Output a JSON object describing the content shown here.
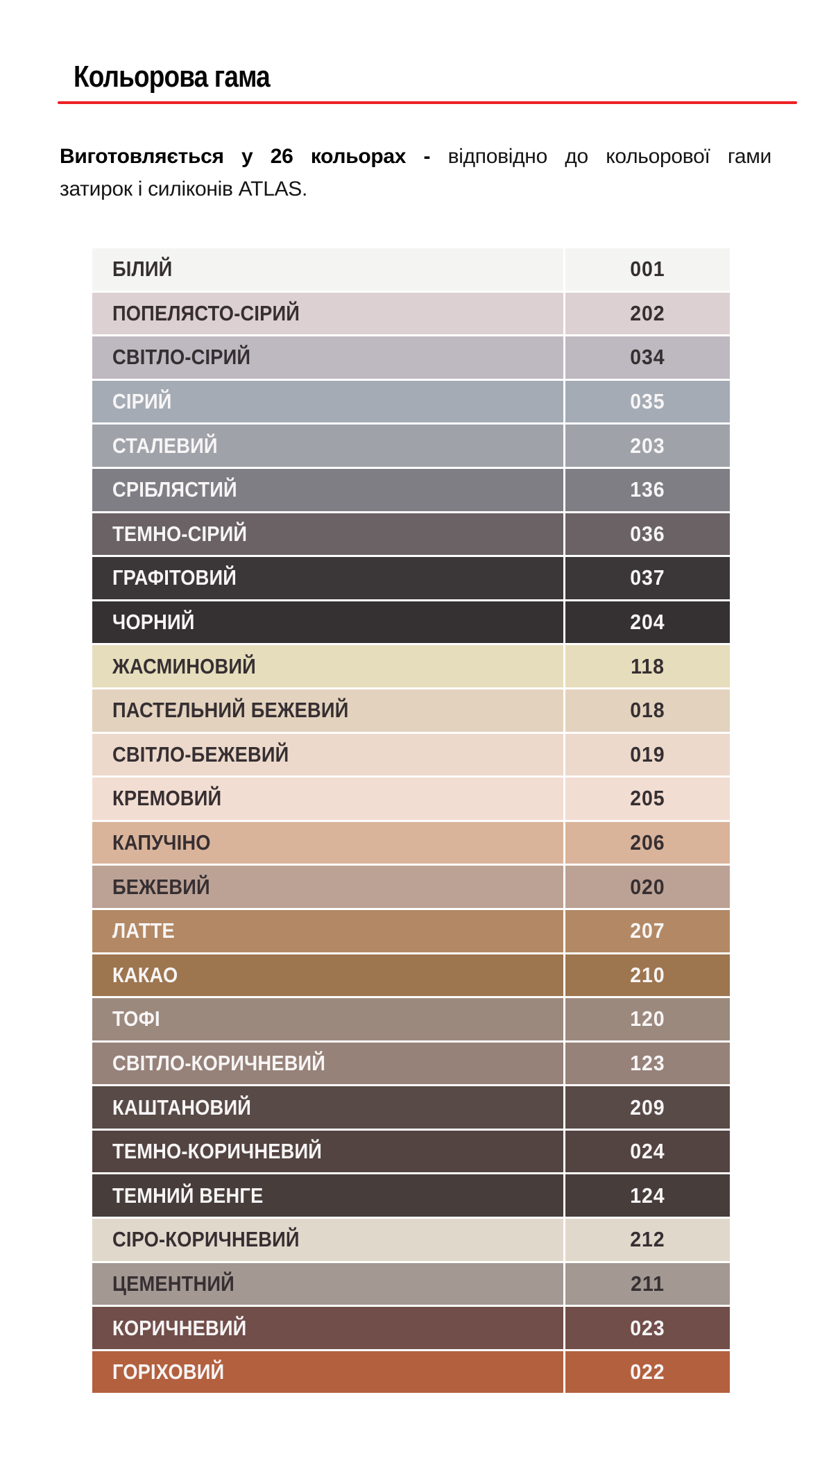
{
  "header": {
    "title": "Кольорова гама",
    "accent_line_color": "#ee2123"
  },
  "intro": {
    "line1_bold": "Виготовляється у 26  кольорах -",
    "line1_regular": "відповідно до кольорової гами",
    "line2": "затирок і силіконів ATLAS."
  },
  "palette": {
    "count": 26,
    "dark_text_color": "#362f32",
    "light_text_color": "#f7f5f6",
    "rows": [
      {
        "name": "БІЛИЙ",
        "code": "001",
        "bg": "#f4f5f2",
        "fg": "dark"
      },
      {
        "name": "ПОПЕЛЯСТО-СІРИЙ",
        "code": "202",
        "bg": "#ddd0d2",
        "fg": "dark"
      },
      {
        "name": "СВІТЛО-СІРИЙ",
        "code": "034",
        "bg": "#beb8c0",
        "fg": "dark"
      },
      {
        "name": "СІРИЙ",
        "code": "035",
        "bg": "#a4abb4",
        "fg": "light"
      },
      {
        "name": "СТАЛЕВИЙ",
        "code": "203",
        "bg": "#a0a2a9",
        "fg": "light"
      },
      {
        "name": "СРІБЛЯСТИЙ",
        "code": "136",
        "bg": "#7f7e84",
        "fg": "light"
      },
      {
        "name": "ТЕМНО-СІРИЙ",
        "code": "036",
        "bg": "#6a6265",
        "fg": "light"
      },
      {
        "name": "ГРАФІТОВИЙ",
        "code": "037",
        "bg": "#3b3738",
        "fg": "light"
      },
      {
        "name": "ЧОРНИЙ",
        "code": "204",
        "bg": "#353132",
        "fg": "light"
      },
      {
        "name": "ЖАСМИНОВИЙ",
        "code": "118",
        "bg": "#e6ddbc",
        "fg": "dark"
      },
      {
        "name": "ПАСТЕЛЬНИЙ БЕЖЕВИЙ",
        "code": "018",
        "bg": "#e3d2be",
        "fg": "dark"
      },
      {
        "name": "СВІТЛО-БЕЖЕВИЙ",
        "code": "019",
        "bg": "#ecd9cb",
        "fg": "dark"
      },
      {
        "name": "КРЕМОВИЙ",
        "code": "205",
        "bg": "#f2ddd2",
        "fg": "dark"
      },
      {
        "name": "КАПУЧІНО",
        "code": "206",
        "bg": "#d9b49b",
        "fg": "dark"
      },
      {
        "name": "БЕЖЕВИЙ",
        "code": "020",
        "bg": "#bca295",
        "fg": "dark"
      },
      {
        "name": "ЛАТТЕ",
        "code": "207",
        "bg": "#b38965",
        "fg": "light"
      },
      {
        "name": "КАКАО",
        "code": "210",
        "bg": "#9d754f",
        "fg": "light"
      },
      {
        "name": "ТОФІ",
        "code": "120",
        "bg": "#9c897e",
        "fg": "light"
      },
      {
        "name": "СВІТЛО-КОРИЧНЕВИЙ",
        "code": "123",
        "bg": "#968279",
        "fg": "light"
      },
      {
        "name": "КАШТАНОВИЙ",
        "code": "209",
        "bg": "#584a46",
        "fg": "light"
      },
      {
        "name": "ТЕМНО-КОРИЧНЕВИЙ",
        "code": "024",
        "bg": "#534441",
        "fg": "light"
      },
      {
        "name": "ТЕМНИЙ ВЕНГЕ",
        "code": "124",
        "bg": "#473d3a",
        "fg": "light"
      },
      {
        "name": "СІРО-КОРИЧНЕВИЙ",
        "code": "212",
        "bg": "#e1d8cc",
        "fg": "dark"
      },
      {
        "name": "ЦЕМЕНТНИЙ",
        "code": "211",
        "bg": "#a39892",
        "fg": "dark"
      },
      {
        "name": "КОРИЧНЕВИЙ",
        "code": "023",
        "bg": "#714e4a",
        "fg": "light"
      },
      {
        "name": "ГОРІХОВИЙ",
        "code": "022",
        "bg": "#b3603f",
        "fg": "light"
      }
    ]
  }
}
